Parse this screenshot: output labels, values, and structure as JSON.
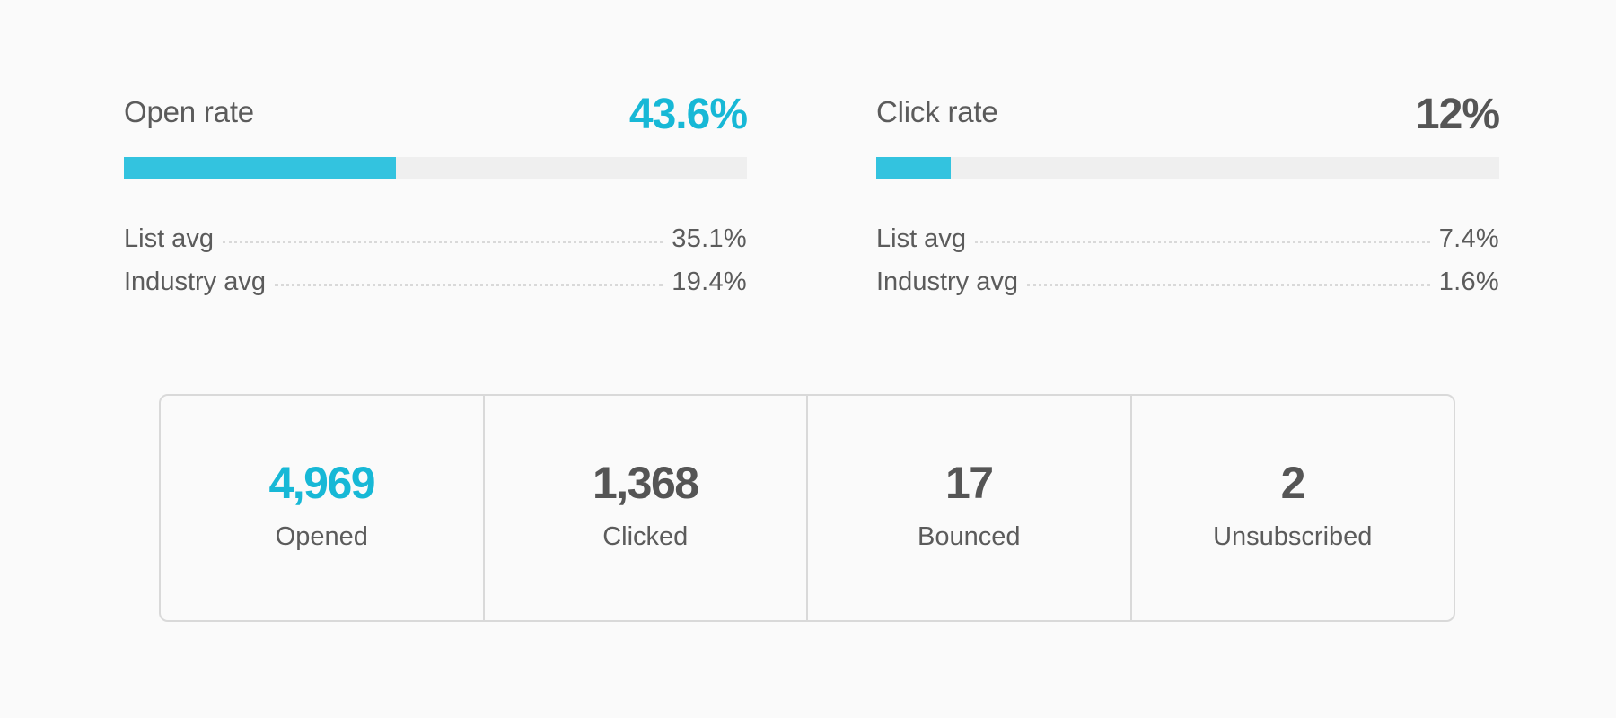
{
  "colors": {
    "accent": "#33c3df",
    "accent_text": "#17b8d6",
    "text": "#5b5b5b",
    "track": "#efefef",
    "border": "#d9d9d9"
  },
  "metrics": [
    {
      "title": "Open rate",
      "value": "43.6%",
      "percent": 43.6,
      "value_color": "#17b8d6",
      "list_avg_label": "List avg",
      "list_avg_value": "35.1%",
      "industry_avg_label": "Industry avg",
      "industry_avg_value": "19.4%"
    },
    {
      "title": "Click rate",
      "value": "12%",
      "percent": 12,
      "value_color": "#555555",
      "list_avg_label": "List avg",
      "list_avg_value": "7.4%",
      "industry_avg_label": "Industry avg",
      "industry_avg_value": "1.6%"
    }
  ],
  "stats": [
    {
      "value": "4,969",
      "label": "Opened",
      "value_color": "#17b8d6"
    },
    {
      "value": "1,368",
      "label": "Clicked",
      "value_color": "#555555"
    },
    {
      "value": "17",
      "label": "Bounced",
      "value_color": "#555555"
    },
    {
      "value": "2",
      "label": "Unsubscribed",
      "value_color": "#555555"
    }
  ]
}
